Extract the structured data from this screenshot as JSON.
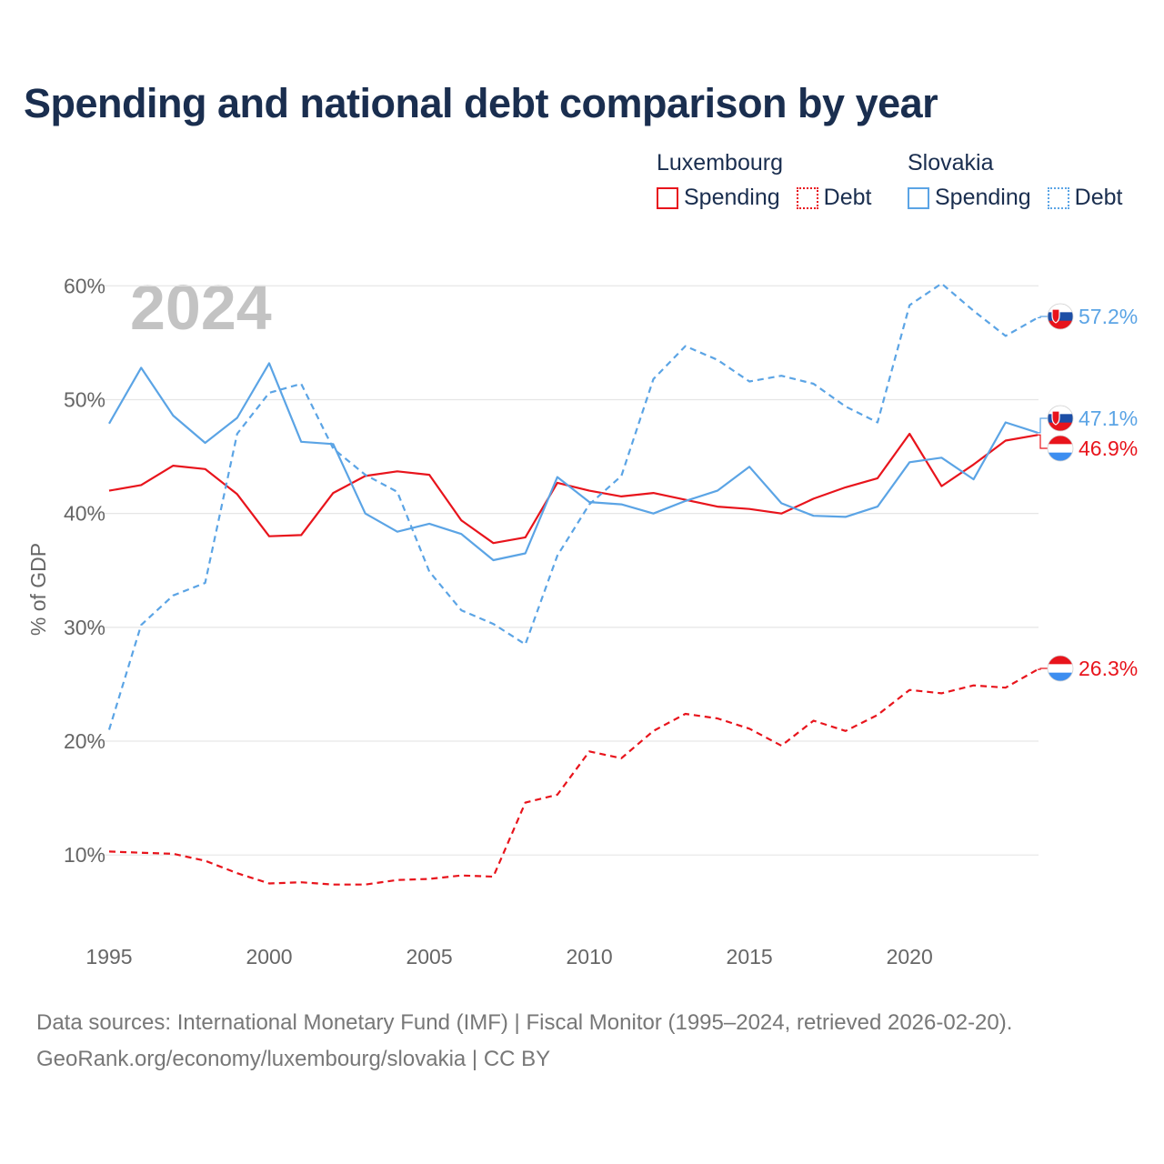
{
  "title": "Spending and national debt comparison by year",
  "legend": {
    "groups": [
      {
        "country": "Luxembourg",
        "color": "#e8141c",
        "items": [
          {
            "label": "Spending",
            "style": "solid"
          },
          {
            "label": "Debt",
            "style": "dotted"
          }
        ]
      },
      {
        "country": "Slovakia",
        "color": "#5ba4e5",
        "items": [
          {
            "label": "Spending",
            "style": "solid"
          },
          {
            "label": "Debt",
            "style": "dotted"
          }
        ]
      }
    ]
  },
  "source": {
    "line1": "Data sources: International Monetary Fund (IMF) | Fiscal Monitor (1995–2024, retrieved 2026-02-20).",
    "line2": "GeoRank.org/economy/luxembourg/slovakia | CC BY"
  },
  "chart_data": {
    "type": "line",
    "year_label": "2024",
    "ylabel": "% of GDP",
    "ylim": [
      3,
      63
    ],
    "xlim": [
      1995,
      2024
    ],
    "y_ticks": [
      {
        "value": 10,
        "label": "10%"
      },
      {
        "value": 20,
        "label": "20%"
      },
      {
        "value": 30,
        "label": "30%"
      },
      {
        "value": 40,
        "label": "40%"
      },
      {
        "value": 50,
        "label": "50%"
      },
      {
        "value": 60,
        "label": "60%"
      }
    ],
    "x_ticks": [
      {
        "value": 1995,
        "label": "1995"
      },
      {
        "value": 2000,
        "label": "2000"
      },
      {
        "value": 2005,
        "label": "2005"
      },
      {
        "value": 2010,
        "label": "2010"
      },
      {
        "value": 2015,
        "label": "2015"
      },
      {
        "value": 2020,
        "label": "2020"
      }
    ],
    "grid": true,
    "x": [
      1995,
      1996,
      1997,
      1998,
      1999,
      2000,
      2001,
      2002,
      2003,
      2004,
      2005,
      2006,
      2007,
      2008,
      2009,
      2010,
      2011,
      2012,
      2013,
      2014,
      2015,
      2016,
      2017,
      2018,
      2019,
      2020,
      2021,
      2022,
      2023,
      2024
    ],
    "series": [
      {
        "name": "Luxembourg Spending",
        "country": "Luxembourg",
        "kind": "spending",
        "color": "#e8141c",
        "dashed": false,
        "values": [
          42.0,
          42.5,
          44.2,
          43.9,
          41.7,
          38.0,
          38.1,
          41.8,
          43.3,
          43.7,
          43.4,
          39.4,
          37.4,
          37.9,
          42.7,
          42.0,
          41.5,
          41.8,
          41.2,
          40.6,
          40.4,
          40.0,
          41.3,
          42.3,
          43.1,
          47.0,
          42.4,
          44.3,
          46.4,
          46.9
        ],
        "end_label": "46.9%",
        "flag": "luxembourg"
      },
      {
        "name": "Luxembourg Debt",
        "country": "Luxembourg",
        "kind": "debt",
        "color": "#e8141c",
        "dashed": true,
        "values": [
          10.3,
          10.2,
          10.1,
          9.5,
          8.4,
          7.5,
          7.6,
          7.4,
          7.4,
          7.8,
          7.9,
          8.2,
          8.1,
          14.6,
          15.3,
          19.1,
          18.5,
          20.9,
          22.4,
          22.0,
          21.1,
          19.6,
          21.8,
          20.9,
          22.3,
          24.5,
          24.2,
          24.9,
          24.7,
          26.3
        ],
        "end_label": "26.3%",
        "flag": "luxembourg"
      },
      {
        "name": "Slovakia Spending",
        "country": "Slovakia",
        "kind": "spending",
        "color": "#5ba4e5",
        "dashed": false,
        "values": [
          47.9,
          52.8,
          48.6,
          46.2,
          48.4,
          53.2,
          46.3,
          46.1,
          40.0,
          38.4,
          39.1,
          38.2,
          35.9,
          36.5,
          43.2,
          41.0,
          40.8,
          40.0,
          41.1,
          42.0,
          44.1,
          40.9,
          39.8,
          39.7,
          40.6,
          44.5,
          44.9,
          43.0,
          48.0,
          47.1
        ],
        "end_label": "47.1%",
        "flag": "slovakia"
      },
      {
        "name": "Slovakia Debt",
        "country": "Slovakia",
        "kind": "debt",
        "color": "#5ba4e5",
        "dashed": true,
        "values": [
          21.0,
          30.2,
          32.8,
          33.9,
          47.0,
          50.6,
          51.4,
          45.7,
          43.4,
          41.9,
          34.9,
          31.5,
          30.3,
          28.5,
          36.3,
          40.8,
          43.3,
          51.8,
          54.7,
          53.5,
          51.6,
          52.1,
          51.4,
          49.4,
          48.0,
          58.3,
          60.2,
          57.8,
          55.6,
          57.2
        ],
        "end_label": "57.2%",
        "flag": "slovakia"
      }
    ]
  }
}
